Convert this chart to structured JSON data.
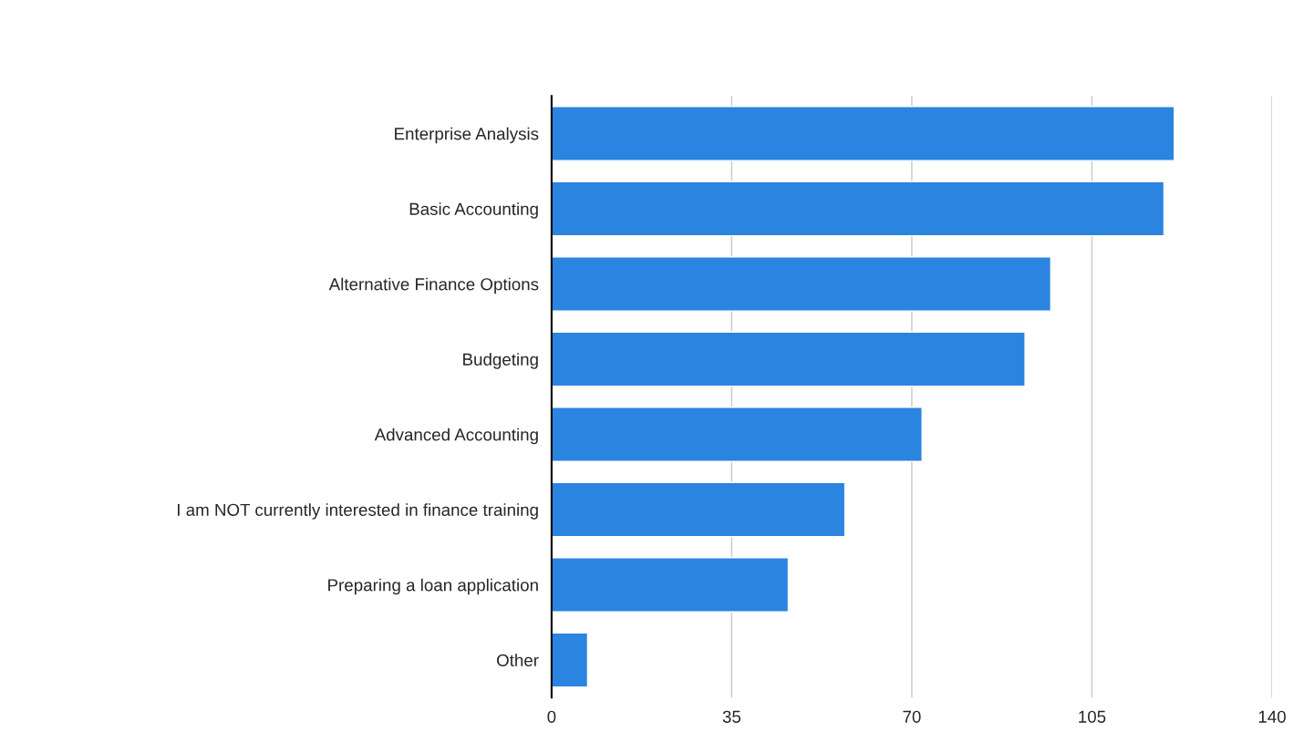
{
  "chart_data": {
    "type": "bar",
    "orientation": "horizontal",
    "categories": [
      "Enterprise Analysis",
      "Basic Accounting",
      "Alternative Finance Options",
      "Budgeting",
      "Advanced Accounting",
      "I am NOT currently interested in finance training",
      "Preparing a loan application",
      "Other"
    ],
    "values": [
      121,
      119,
      97,
      92,
      72,
      57,
      46,
      7
    ],
    "color": "#2a84e0",
    "xlim": [
      0,
      140
    ],
    "xticks": [
      0,
      35,
      70,
      105,
      140
    ],
    "grid": "x"
  }
}
